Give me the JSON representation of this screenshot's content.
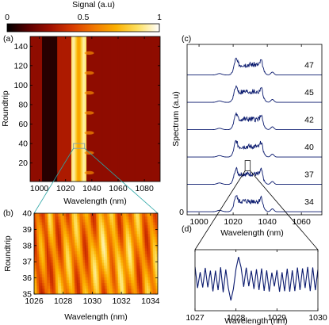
{
  "colorbar": {
    "label": "Signal (a.u)",
    "ticks": [
      {
        "value": 0,
        "label": "0"
      },
      {
        "value": 0.5,
        "label": "0.5"
      },
      {
        "value": 1,
        "label": "1"
      }
    ],
    "colormap": [
      "#000000",
      "#5c0000",
      "#a01000",
      "#d83a00",
      "#f27800",
      "#fbb000",
      "#fde060",
      "#ffffff"
    ]
  },
  "chart_data": [
    {
      "panel": "(a)",
      "type": "heatmap",
      "xlabel": "Wavelength (nm)",
      "ylabel": "Roundtrip",
      "xlim": [
        993,
        1092
      ],
      "ylim": [
        1,
        150
      ],
      "xticks": [
        1000,
        1020,
        1040,
        1060,
        1080
      ],
      "yticks": [
        20,
        40,
        60,
        80,
        100,
        120,
        140
      ],
      "description_values": {
        "background_level": 0.25,
        "dark_band_nm": [
          1002,
          1014
        ],
        "bright_band_nm": [
          1024,
          1036
        ],
        "bright_band_level": 0.8
      },
      "zoom_box": {
        "x": [
          1026,
          1034.5
        ],
        "y": [
          35,
          40
        ]
      }
    },
    {
      "panel": "(b)",
      "type": "heatmap",
      "xlabel": "Wavelength (nm)",
      "ylabel": "Roundtrip",
      "xlim": [
        1026,
        1034.5
      ],
      "ylim": [
        35,
        40
      ],
      "xticks": [
        1026,
        1028,
        1030,
        1032,
        1034
      ],
      "yticks": [
        35,
        36,
        37,
        38,
        39,
        40
      ]
    },
    {
      "panel": "(c)",
      "type": "line",
      "xlabel": "Wavelength (nm)",
      "ylabel": "Spectrum (a.u)",
      "xlim": [
        993,
        1072
      ],
      "xticks": [
        1000,
        1020,
        1040,
        1060
      ],
      "ytick_label": "0",
      "color": "#0a1a6e",
      "series": [
        {
          "name": "47",
          "offset": 5
        },
        {
          "name": "45",
          "offset": 4
        },
        {
          "name": "42",
          "offset": 3
        },
        {
          "name": "40",
          "offset": 2
        },
        {
          "name": "37",
          "offset": 1
        },
        {
          "name": "34",
          "offset": 0
        }
      ],
      "zoom_box": {
        "x": [
          1027,
          1030
        ]
      }
    },
    {
      "panel": "(d)",
      "type": "line",
      "xlabel": "Wavelength (nm)",
      "xlim": [
        1027,
        1030
      ],
      "xticks": [
        1027,
        1028,
        1029,
        1030
      ],
      "color": "#0a1a6e"
    }
  ]
}
